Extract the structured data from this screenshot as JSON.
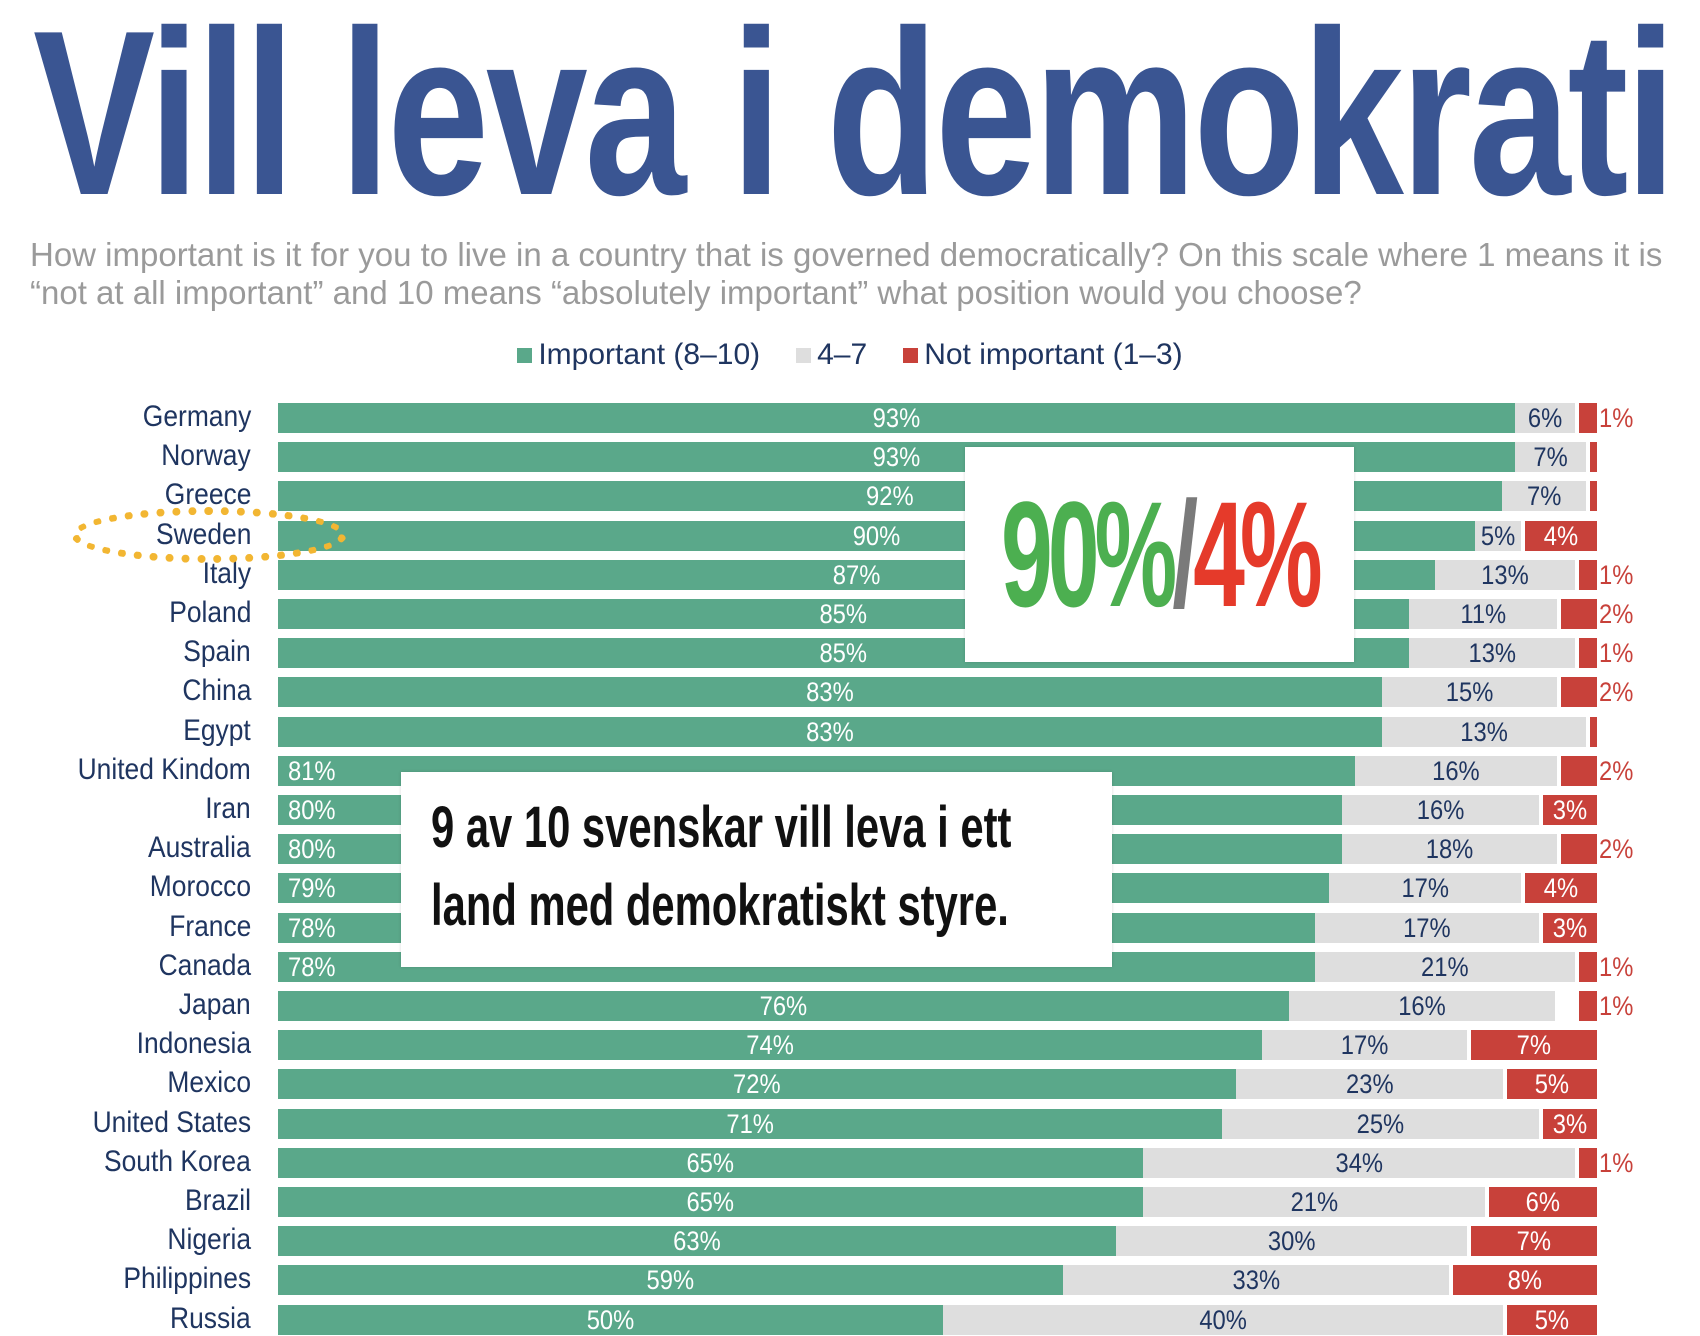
{
  "title": "Vill leva i demokrati",
  "subtitle_line1": "How important is it for you to live in a country that is governed democratically? On this scale where 1 means it is",
  "subtitle_line2": "“not at all important” and 10 means “absolutely important” what position would you choose?",
  "callout_big": {
    "green": "90%",
    "slash": "/",
    "red": "4%"
  },
  "callout_text": {
    "line1": "9 av 10 svenskar vill leva i ett",
    "line2": "land med demokratiskt styre."
  },
  "highlighted_country": "Sweden",
  "colors": {
    "important": "#5aa88a",
    "middle": "#dedede",
    "not_important": "#c8413a",
    "title": "#3a5592",
    "callout_green": "#4caf50",
    "callout_red": "#e53a2a",
    "callout_slash": "#7a7a7a"
  },
  "chart_data": {
    "type": "bar",
    "orientation": "horizontal-stacked",
    "legend_position": "top-center",
    "series_names": [
      "Important (8–10)",
      "4–7",
      "Not important (1–3)"
    ],
    "categories": [
      "Germany",
      "Norway",
      "Greece",
      "Sweden",
      "Italy",
      "Poland",
      "Spain",
      "China",
      "Egypt",
      "United Kindom",
      "Iran",
      "Australia",
      "Morocco",
      "France",
      "Canada",
      "Japan",
      "Indonesia",
      "Mexico",
      "United States",
      "South Korea",
      "Brazil",
      "Nigeria",
      "Philippines",
      "Russia"
    ],
    "series": [
      {
        "name": "Important (8–10)",
        "values": [
          93,
          93,
          92,
          90,
          87,
          85,
          85,
          83,
          83,
          81,
          80,
          80,
          79,
          78,
          78,
          76,
          74,
          72,
          71,
          65,
          65,
          63,
          59,
          50
        ]
      },
      {
        "name": "4–7",
        "values": [
          6,
          7,
          7,
          5,
          13,
          11,
          13,
          15,
          13,
          16,
          16,
          18,
          17,
          17,
          21,
          16,
          17,
          23,
          25,
          34,
          21,
          30,
          33,
          40
        ]
      },
      {
        "name": "Not important (1–3)",
        "values": [
          1,
          null,
          null,
          4,
          1,
          2,
          1,
          2,
          null,
          2,
          3,
          2,
          4,
          3,
          1,
          1,
          7,
          5,
          3,
          1,
          6,
          7,
          8,
          5
        ]
      }
    ],
    "xlim": [
      0,
      100
    ]
  }
}
